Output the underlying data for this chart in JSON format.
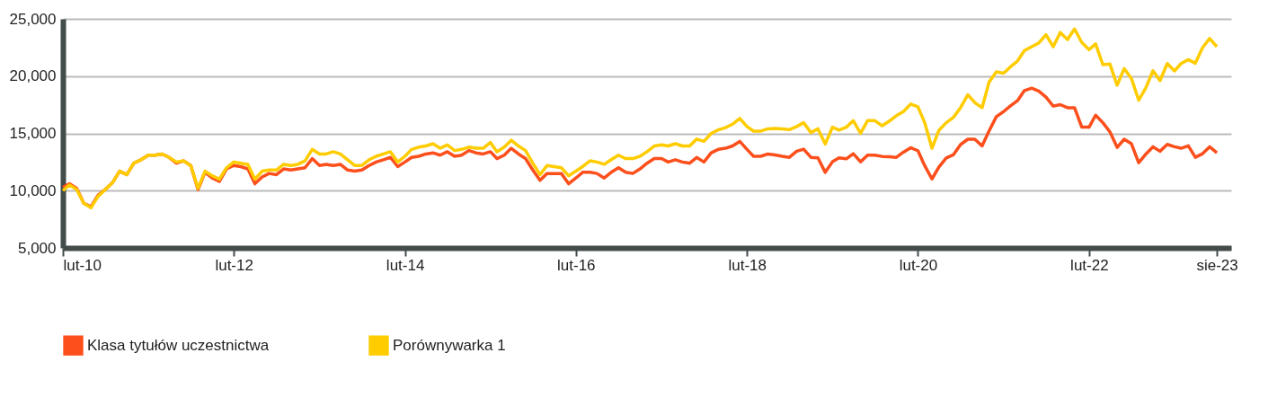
{
  "chart_data": {
    "type": "line",
    "x": [
      "2010-02",
      "2010-03",
      "2010-04",
      "2010-05",
      "2010-06",
      "2010-07",
      "2010-08",
      "2010-09",
      "2010-10",
      "2010-11",
      "2010-12",
      "2011-01",
      "2011-02",
      "2011-03",
      "2011-04",
      "2011-05",
      "2011-06",
      "2011-07",
      "2011-08",
      "2011-09",
      "2011-10",
      "2011-11",
      "2011-12",
      "2012-01",
      "2012-02",
      "2012-03",
      "2012-04",
      "2012-05",
      "2012-06",
      "2012-07",
      "2012-08",
      "2012-09",
      "2012-10",
      "2012-11",
      "2012-12",
      "2013-01",
      "2013-02",
      "2013-03",
      "2013-04",
      "2013-05",
      "2013-06",
      "2013-07",
      "2013-08",
      "2013-09",
      "2013-10",
      "2013-11",
      "2013-12",
      "2014-01",
      "2014-02",
      "2014-03",
      "2014-04",
      "2014-05",
      "2014-06",
      "2014-07",
      "2014-08",
      "2014-09",
      "2014-10",
      "2014-11",
      "2014-12",
      "2015-01",
      "2015-02",
      "2015-03",
      "2015-04",
      "2015-05",
      "2015-06",
      "2015-07",
      "2015-08",
      "2015-09",
      "2015-10",
      "2015-11",
      "2015-12",
      "2016-01",
      "2016-02",
      "2016-03",
      "2016-04",
      "2016-05",
      "2016-06",
      "2016-07",
      "2016-08",
      "2016-09",
      "2016-10",
      "2016-11",
      "2016-12",
      "2017-01",
      "2017-02",
      "2017-03",
      "2017-04",
      "2017-05",
      "2017-06",
      "2017-07",
      "2017-08",
      "2017-09",
      "2017-10",
      "2017-11",
      "2017-12",
      "2018-01",
      "2018-02",
      "2018-03",
      "2018-04",
      "2018-05",
      "2018-06",
      "2018-07",
      "2018-08",
      "2018-09",
      "2018-10",
      "2018-11",
      "2018-12",
      "2019-01",
      "2019-02",
      "2019-03",
      "2019-04",
      "2019-05",
      "2019-06",
      "2019-07",
      "2019-08",
      "2019-09",
      "2019-10",
      "2019-11",
      "2019-12",
      "2020-01",
      "2020-02",
      "2020-03",
      "2020-04",
      "2020-05",
      "2020-06",
      "2020-07",
      "2020-08",
      "2020-09",
      "2020-10",
      "2020-11",
      "2020-12",
      "2021-01",
      "2021-02",
      "2021-03",
      "2021-04",
      "2021-05",
      "2021-06",
      "2021-07",
      "2021-08",
      "2021-09",
      "2021-10",
      "2021-11",
      "2021-12",
      "2022-01",
      "2022-02",
      "2022-03",
      "2022-04",
      "2022-05",
      "2022-06",
      "2022-07",
      "2022-08",
      "2022-09",
      "2022-10",
      "2022-11",
      "2022-12",
      "2023-01",
      "2023-02",
      "2023-03",
      "2023-04",
      "2023-05",
      "2023-06",
      "2023-07",
      "2023-08"
    ],
    "series": [
      {
        "name": "Klasa tytułów uczestnictwa",
        "color": "#fc4f1c",
        "values": [
          10300,
          10600,
          10200,
          8900,
          8600,
          9600,
          10100,
          10700,
          11700,
          11400,
          12400,
          12700,
          13100,
          13100,
          13200,
          12900,
          12400,
          12600,
          12200,
          10100,
          11600,
          11100,
          10800,
          11900,
          12200,
          12100,
          11900,
          10600,
          11200,
          11500,
          11400,
          11900,
          11800,
          11900,
          12000,
          12800,
          12200,
          12300,
          12200,
          12300,
          11800,
          11700,
          11800,
          12200,
          12500,
          12700,
          12900,
          12100,
          12500,
          12900,
          13000,
          13200,
          13300,
          13100,
          13400,
          13000,
          13100,
          13500,
          13300,
          13200,
          13400,
          12800,
          13100,
          13700,
          13200,
          12800,
          11800,
          10900,
          11500,
          11500,
          11500,
          10600,
          11100,
          11600,
          11600,
          11500,
          11100,
          11600,
          12000,
          11600,
          11500,
          11900,
          12400,
          12800,
          12800,
          12500,
          12700,
          12500,
          12400,
          12900,
          12500,
          13300,
          13600,
          13700,
          13900,
          14300,
          13600,
          13000,
          13000,
          13200,
          13120,
          13000,
          12910,
          13440,
          13620,
          12910,
          12860,
          11600,
          12520,
          12860,
          12780,
          13230,
          12520,
          13100,
          13100,
          12990,
          12970,
          12910,
          13360,
          13750,
          13490,
          12180,
          11020,
          12070,
          12860,
          13120,
          14020,
          14490,
          14490,
          13910,
          15220,
          16460,
          16900,
          17380,
          17850,
          18740,
          18950,
          18690,
          18160,
          17380,
          17510,
          17240,
          17240,
          15540,
          15540,
          16590,
          15930,
          15140,
          13780,
          14490,
          14090,
          12440,
          13180,
          13830,
          13440,
          14040,
          13830,
          13700,
          13910,
          12910,
          13230,
          13830,
          13310
        ]
      },
      {
        "name": "Porównywarka 1",
        "color": "#ffcc00",
        "values": [
          10000,
          10500,
          10100,
          8900,
          8500,
          9500,
          10100,
          10700,
          11700,
          11400,
          12400,
          12700,
          13100,
          13100,
          13200,
          12900,
          12500,
          12600,
          12200,
          10200,
          11700,
          11300,
          11000,
          12000,
          12500,
          12400,
          12300,
          11000,
          11700,
          11800,
          11800,
          12300,
          12200,
          12300,
          12600,
          13600,
          13200,
          13200,
          13400,
          13200,
          12700,
          12200,
          12200,
          12700,
          13000,
          13200,
          13400,
          12500,
          13000,
          13600,
          13800,
          13900,
          14100,
          13700,
          14000,
          13500,
          13600,
          13800,
          13700,
          13700,
          14200,
          13400,
          13800,
          14400,
          13900,
          13500,
          12400,
          11400,
          12200,
          12100,
          12000,
          11300,
          11700,
          12100,
          12600,
          12500,
          12300,
          12700,
          13100,
          12800,
          12800,
          13000,
          13400,
          13900,
          14000,
          13900,
          14100,
          13900,
          13900,
          14500,
          14300,
          15000,
          15300,
          15500,
          15800,
          16300,
          15600,
          15200,
          15200,
          15400,
          15430,
          15400,
          15330,
          15600,
          15930,
          15070,
          15400,
          14070,
          15540,
          15280,
          15540,
          16110,
          15010,
          16110,
          16110,
          15670,
          16060,
          16540,
          16900,
          17560,
          17320,
          15930,
          13700,
          15280,
          15930,
          16380,
          17240,
          18370,
          17690,
          17240,
          19480,
          20370,
          20260,
          20790,
          21310,
          22230,
          22570,
          22890,
          23620,
          22570,
          23810,
          23200,
          24120,
          22940,
          22310,
          22810,
          21000,
          21050,
          19210,
          20660,
          19790,
          17900,
          18950,
          20470,
          19610,
          21100,
          20450,
          21100,
          21440,
          21130,
          22490,
          23280,
          22570
        ]
      }
    ],
    "xlim": [
      "2010-02",
      "2023-10"
    ],
    "xticks": [
      {
        "value": "2010-02",
        "label": "lut-10"
      },
      {
        "value": "2012-02",
        "label": "lut-12"
      },
      {
        "value": "2014-02",
        "label": "lut-14"
      },
      {
        "value": "2016-02",
        "label": "lut-16"
      },
      {
        "value": "2018-02",
        "label": "lut-18"
      },
      {
        "value": "2020-02",
        "label": "lut-20"
      },
      {
        "value": "2022-02",
        "label": "lut-22"
      },
      {
        "value": "2023-08",
        "label": "sie-23"
      }
    ],
    "ylim": [
      5000,
      25000
    ],
    "yticks": [
      {
        "value": 5000,
        "label": "5,000"
      },
      {
        "value": 10000,
        "label": "10,000"
      },
      {
        "value": 15000,
        "label": "15,000"
      },
      {
        "value": 20000,
        "label": "20,000"
      },
      {
        "value": 25000,
        "label": "25,000"
      }
    ],
    "grid": "y",
    "legend": "bottom left",
    "marker": "none",
    "line_style": "solid"
  }
}
